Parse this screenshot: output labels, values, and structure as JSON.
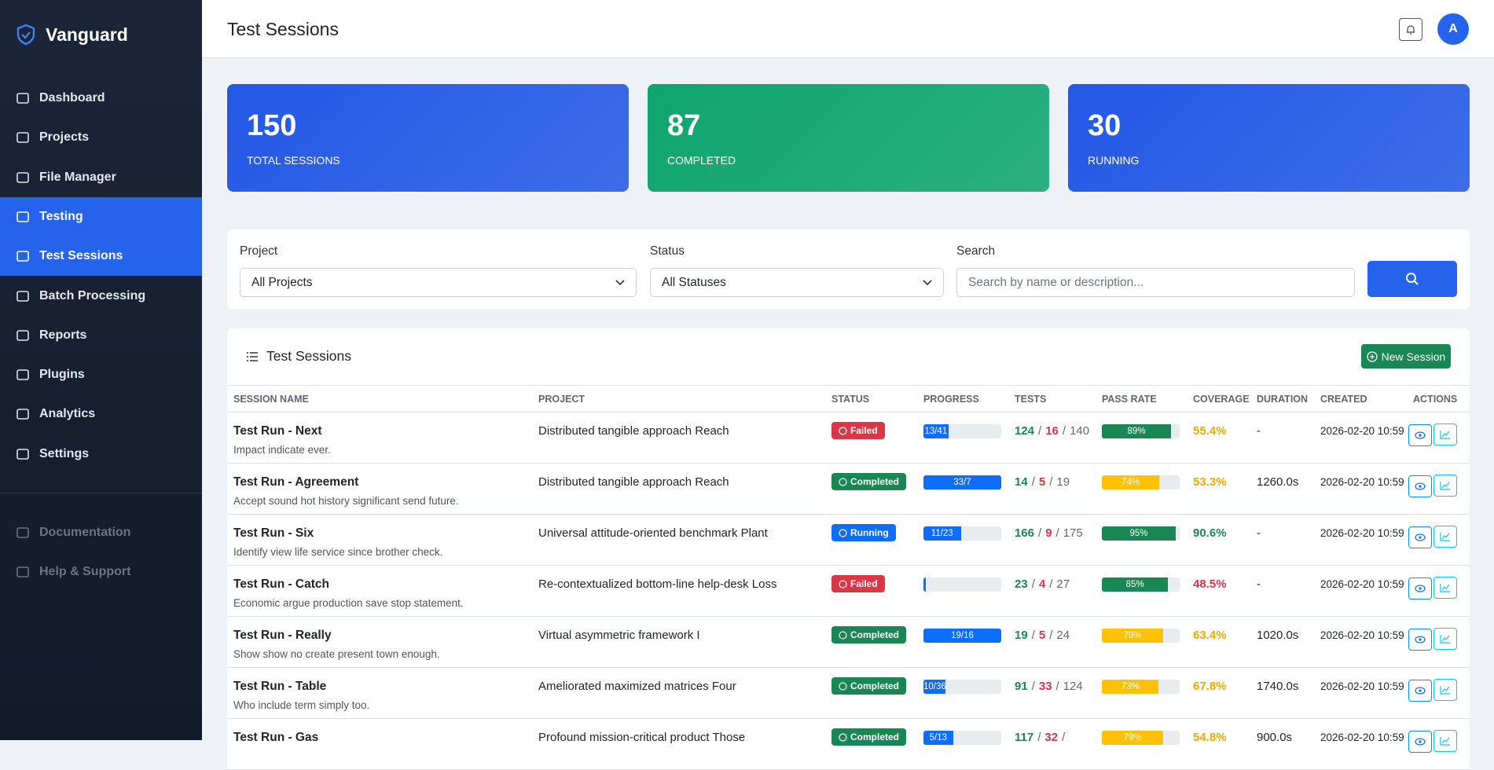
{
  "sidebar": {
    "brand": "Vanguard",
    "menu": [
      {
        "label": "Dashboard",
        "active": false
      },
      {
        "label": "Projects",
        "active": false
      },
      {
        "label": "File Manager",
        "active": false
      },
      {
        "label": "Testing",
        "active": true
      },
      {
        "label": "Test Sessions",
        "active": true
      },
      {
        "label": "Batch Processing",
        "active": false
      },
      {
        "label": "Reports",
        "active": false
      },
      {
        "label": "Plugins",
        "active": false
      },
      {
        "label": "Analytics",
        "active": false
      },
      {
        "label": "Settings",
        "active": false
      }
    ],
    "footer_menu": [
      "Documentation",
      "Help & Support"
    ]
  },
  "header": {
    "title": "Test Sessions",
    "avatar": "A"
  },
  "stats": [
    {
      "value": 150,
      "label": "TOTAL SESSIONS",
      "color": "#2358e6"
    },
    {
      "value": 87,
      "label": "COMPLETED",
      "color": "#0ea56f"
    },
    {
      "value": 30,
      "label": "RUNNING",
      "color": "#2358e6"
    }
  ],
  "filters": {
    "project": {
      "label": "Project",
      "value": "All Projects"
    },
    "status": {
      "label": "Status",
      "value": "All Statuses"
    },
    "search": {
      "label": "Search",
      "placeholder": "Search by name or description..."
    }
  },
  "table": {
    "title": "Test Sessions",
    "new_button": "New Session",
    "tests_separator": "/",
    "columns": [
      "SESSION NAME",
      "PROJECT",
      "STATUS",
      "PROGRESS",
      "TESTS",
      "PASS RATE",
      "COVERAGE",
      "DURATION",
      "CREATED",
      "ACTIONS"
    ],
    "rows": [
      {
        "name": "Test Run - Next",
        "description": "Impact indicate ever.",
        "project": "Distributed tangible approach Reach",
        "status": "Failed",
        "progress": 32,
        "progress_label": "13/41",
        "passed": 124,
        "failed": 16,
        "total": 140,
        "pass_rate": 89,
        "pass_rate_label": "89%",
        "pass_color": "#198754",
        "coverage": "55.4%",
        "coverage_color": "#f2a900",
        "duration": "-",
        "created": "2026-02-20 10:59"
      },
      {
        "name": "Test Run - Agreement",
        "description": "Accept sound hot history significant send future.",
        "project": "Distributed tangible approach Reach",
        "status": "Completed",
        "progress": 100,
        "progress_label": "33/7",
        "passed": 14,
        "failed": 5,
        "total": 19,
        "pass_rate": 74,
        "pass_rate_label": "74%",
        "pass_color": "#ffc107",
        "coverage": "53.3%",
        "coverage_color": "#f2a900",
        "duration": "1260.0s",
        "created": "2026-02-20 10:59"
      },
      {
        "name": "Test Run - Six",
        "description": "Identify view life service since brother check.",
        "project": "Universal attitude-oriented benchmark Plant",
        "status": "Running",
        "progress": 48,
        "progress_label": "11/23",
        "passed": 166,
        "failed": 9,
        "total": 175,
        "pass_rate": 95,
        "pass_rate_label": "95%",
        "pass_color": "#198754",
        "coverage": "90.6%",
        "coverage_color": "#198754",
        "duration": "-",
        "created": "2026-02-20 10:59"
      },
      {
        "name": "Test Run - Catch",
        "description": "Economic argue production save stop statement.",
        "project": "Re-contextualized bottom-line help-desk Loss",
        "status": "Failed",
        "progress": 3,
        "passed": 23,
        "failed": 4,
        "total": 27,
        "pass_rate": 85,
        "pass_rate_label": "85%",
        "pass_color": "#198754",
        "coverage": "48.5%",
        "coverage_color": "#dc3545",
        "duration": "-",
        "created": "2026-02-20 10:59"
      },
      {
        "name": "Test Run - Really",
        "description": "Show show no create present town enough.",
        "project": "Virtual asymmetric framework I",
        "status": "Completed",
        "progress": 100,
        "progress_label": "19/16",
        "passed": 19,
        "failed": 5,
        "total": 24,
        "pass_rate": 79,
        "pass_rate_label": "79%",
        "pass_color": "#ffc107",
        "coverage": "63.4%",
        "coverage_color": "#f2a900",
        "duration": "1020.0s",
        "created": "2026-02-20 10:59"
      },
      {
        "name": "Test Run - Table",
        "description": "Who include term simply too.",
        "project": "Ameliorated maximized matrices Four",
        "status": "Completed",
        "progress": 28,
        "progress_label": "10/36",
        "passed": 91,
        "failed": 33,
        "total": 124,
        "pass_rate": 73,
        "pass_rate_label": "73%",
        "pass_color": "#ffc107",
        "coverage": "67.8%",
        "coverage_color": "#f2a900",
        "duration": "1740.0s",
        "created": "2026-02-20 10:59"
      },
      {
        "name": "Test Run - Gas",
        "project": "Profound mission-critical product Those",
        "status": "Completed",
        "progress": 38,
        "progress_label": "5/13",
        "passed": 117,
        "failed": 32,
        "pass_rate": 79,
        "pass_rate_label": "79%",
        "pass_color": "#ffc107",
        "coverage": "54.8%",
        "coverage_color": "#f2a900",
        "duration": "900.0s",
        "created": "2026-02-20 10:59"
      }
    ]
  }
}
